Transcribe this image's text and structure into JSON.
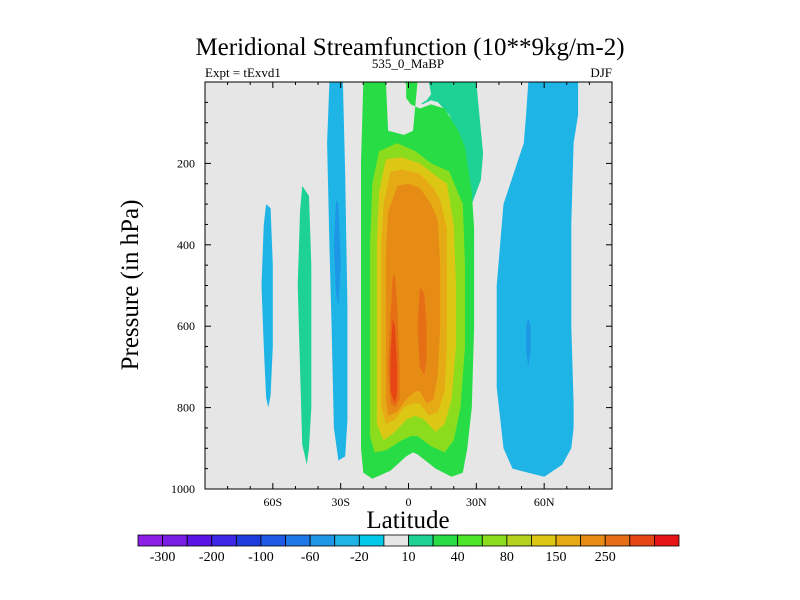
{
  "chart_data": {
    "type": "contour",
    "title": "Meridional Streamfunction (10**9kg/m-2)",
    "left_label": "Expt = tExvd1",
    "center_label": "535_0_MaBP",
    "right_label": "DJF",
    "xlabel": "Latitude",
    "ylabel": "Pressure (in hPa)",
    "xlim": [
      -90,
      90
    ],
    "ylim": [
      1000,
      0
    ],
    "x_ticks": [
      {
        "value": -60,
        "label": "60S"
      },
      {
        "value": -30,
        "label": "30S"
      },
      {
        "value": 0,
        "label": "0"
      },
      {
        "value": 30,
        "label": "30N"
      },
      {
        "value": 60,
        "label": "60N"
      }
    ],
    "y_ticks": [
      {
        "value": 200,
        "label": "200"
      },
      {
        "value": 400,
        "label": "400"
      },
      {
        "value": 600,
        "label": "600"
      },
      {
        "value": 800,
        "label": "800"
      },
      {
        "value": 1000,
        "label": "1000"
      }
    ],
    "background_color": "#e6e6e6",
    "colorbar": {
      "colors": [
        "#8c1ee6",
        "#7a1ee6",
        "#5a14e6",
        "#3c28e6",
        "#1e3cdc",
        "#1e5ae6",
        "#1e78e6",
        "#1e96e6",
        "#1eb4e6",
        "#00c8e6",
        "#e6e6e6",
        "#1ed296",
        "#28dc46",
        "#4ee628",
        "#8cdc1e",
        "#b4d21e",
        "#dcc814",
        "#e6aa14",
        "#e68c14",
        "#e66e14",
        "#e64614",
        "#e61414"
      ],
      "labels": [
        "-300",
        "-200",
        "-100",
        "-60",
        "-20",
        "10",
        "40",
        "80",
        "150",
        "250"
      ]
    },
    "regions": [
      {
        "name": "antarctic-cell",
        "color": "#1eb4e6",
        "points": [
          [
            -63,
            300
          ],
          [
            -61,
            310
          ],
          [
            -60,
            450
          ],
          [
            -60,
            650
          ],
          [
            -61,
            770
          ],
          [
            -62,
            800
          ],
          [
            -63,
            775
          ],
          [
            -64,
            650
          ],
          [
            -65,
            500
          ],
          [
            -64,
            350
          ]
        ]
      },
      {
        "name": "ferrel-cell-south",
        "color": "#1ed296",
        "points": [
          [
            -47,
            255
          ],
          [
            -44,
            280
          ],
          [
            -43,
            450
          ],
          [
            -43,
            650
          ],
          [
            -43,
            800
          ],
          [
            -44,
            900
          ],
          [
            -45,
            940
          ],
          [
            -47,
            890
          ],
          [
            -48,
            700
          ],
          [
            -49,
            500
          ],
          [
            -48,
            320
          ]
        ]
      },
      {
        "name": "south-hadley-edge",
        "color": "#1eb4e6",
        "points": [
          [
            -35,
            0
          ],
          [
            -29,
            0
          ],
          [
            -28,
            230
          ],
          [
            -27,
            550
          ],
          [
            -27,
            830
          ],
          [
            -28,
            920
          ],
          [
            -31,
            930
          ],
          [
            -33,
            850
          ],
          [
            -34,
            600
          ],
          [
            -35,
            400
          ],
          [
            -36,
            150
          ]
        ]
      },
      {
        "name": "south-hadley-core",
        "color": "#1e96e6",
        "points": [
          [
            -32,
            290
          ],
          [
            -31,
            300
          ],
          [
            -30,
            450
          ],
          [
            -31,
            550
          ],
          [
            -32,
            520
          ],
          [
            -33,
            400
          ]
        ]
      },
      {
        "name": "north-hadley-band",
        "color": "#1ed296",
        "points": [
          [
            -2,
            0
          ],
          [
            30,
            0
          ],
          [
            32,
            120
          ],
          [
            33,
            175
          ],
          [
            32,
            240
          ],
          [
            28,
            300
          ],
          [
            25,
            270
          ],
          [
            24,
            160
          ],
          [
            18,
            80
          ],
          [
            13,
            50
          ],
          [
            10,
            45
          ],
          [
            6,
            55
          ],
          [
            4,
            40
          ],
          [
            2,
            20
          ]
        ]
      },
      {
        "name": "north-hadley-inner",
        "color": "#e6e6e6",
        "points": [
          [
            3,
            0
          ],
          [
            9,
            0
          ],
          [
            10,
            30
          ],
          [
            8,
            45
          ],
          [
            5,
            55
          ],
          [
            3,
            50
          ]
        ]
      },
      {
        "name": "northern-cell",
        "color": "#1eb4e6",
        "points": [
          [
            53,
            0
          ],
          [
            75,
            0
          ],
          [
            75,
            80
          ],
          [
            73,
            150
          ],
          [
            72,
            350
          ],
          [
            72,
            600
          ],
          [
            73,
            790
          ],
          [
            73,
            850
          ],
          [
            72,
            900
          ],
          [
            68,
            940
          ],
          [
            60,
            970
          ],
          [
            53,
            960
          ],
          [
            46,
            950
          ],
          [
            42,
            900
          ],
          [
            39,
            750
          ],
          [
            39,
            500
          ],
          [
            42,
            300
          ],
          [
            45,
            250
          ],
          [
            48,
            200
          ],
          [
            51,
            150
          ],
          [
            52,
            80
          ]
        ]
      },
      {
        "name": "northern-cell-core",
        "color": "#1e96e6",
        "points": [
          [
            53,
            580
          ],
          [
            54,
            600
          ],
          [
            54,
            660
          ],
          [
            53,
            700
          ],
          [
            52,
            660
          ],
          [
            52,
            600
          ]
        ]
      },
      {
        "name": "hadley-level-10",
        "color": "#28dc46",
        "points": [
          [
            -20,
            0
          ],
          [
            -10,
            0
          ],
          [
            -9,
            120
          ],
          [
            -2,
            130
          ],
          [
            2,
            120
          ],
          [
            4,
            0
          ],
          [
            -1,
            0
          ],
          [
            -1,
            40
          ],
          [
            1,
            55
          ],
          [
            5,
            65
          ],
          [
            10,
            55
          ],
          [
            16,
            65
          ],
          [
            22,
            120
          ],
          [
            25,
            160
          ],
          [
            28,
            270
          ],
          [
            29,
            360
          ],
          [
            29,
            600
          ],
          [
            28,
            800
          ],
          [
            26,
            900
          ],
          [
            24,
            960
          ],
          [
            19,
            970
          ],
          [
            12,
            950
          ],
          [
            4,
            915
          ],
          [
            2,
            910
          ],
          [
            -1,
            920
          ],
          [
            -8,
            955
          ],
          [
            -16,
            975
          ],
          [
            -20,
            960
          ],
          [
            -21,
            900
          ],
          [
            -21,
            700
          ],
          [
            -21,
            500
          ],
          [
            -21,
            200
          ]
        ]
      },
      {
        "name": "hadley-level-40",
        "color": "#8cdc1e",
        "points": [
          [
            -16,
            250
          ],
          [
            -13,
            170
          ],
          [
            -5,
            150
          ],
          [
            3,
            170
          ],
          [
            10,
            200
          ],
          [
            18,
            220
          ],
          [
            24,
            300
          ],
          [
            25,
            450
          ],
          [
            25,
            650
          ],
          [
            23,
            800
          ],
          [
            20,
            880
          ],
          [
            16,
            910
          ],
          [
            10,
            895
          ],
          [
            4,
            870
          ],
          [
            1,
            870
          ],
          [
            -3,
            880
          ],
          [
            -10,
            905
          ],
          [
            -15,
            910
          ],
          [
            -17,
            870
          ],
          [
            -17,
            600
          ],
          [
            -17,
            400
          ]
        ]
      },
      {
        "name": "hadley-level-80",
        "color": "#dcc814",
        "points": [
          [
            -13,
            270
          ],
          [
            -10,
            190
          ],
          [
            -3,
            185
          ],
          [
            5,
            200
          ],
          [
            12,
            230
          ],
          [
            17,
            250
          ],
          [
            20,
            350
          ],
          [
            21,
            500
          ],
          [
            21,
            650
          ],
          [
            19,
            780
          ],
          [
            16,
            840
          ],
          [
            12,
            860
          ],
          [
            7,
            830
          ],
          [
            3,
            820
          ],
          [
            -1,
            830
          ],
          [
            -6,
            860
          ],
          [
            -11,
            880
          ],
          [
            -14,
            840
          ],
          [
            -14,
            600
          ],
          [
            -14,
            400
          ]
        ]
      },
      {
        "name": "hadley-level-150",
        "color": "#e6aa14",
        "points": [
          [
            -11,
            300
          ],
          [
            -8,
            220
          ],
          [
            -3,
            215
          ],
          [
            5,
            225
          ],
          [
            11,
            260
          ],
          [
            14,
            290
          ],
          [
            17,
            360
          ],
          [
            17,
            500
          ],
          [
            17,
            650
          ],
          [
            16,
            760
          ],
          [
            13,
            810
          ],
          [
            9,
            820
          ],
          [
            5,
            790
          ],
          [
            2,
            790
          ],
          [
            -2,
            800
          ],
          [
            -6,
            830
          ],
          [
            -10,
            840
          ],
          [
            -12,
            800
          ],
          [
            -12,
            600
          ],
          [
            -12,
            400
          ]
        ]
      },
      {
        "name": "hadley-level-250",
        "color": "#e68c14",
        "points": [
          [
            -9,
            320
          ],
          [
            -5,
            255
          ],
          [
            0,
            250
          ],
          [
            5,
            260
          ],
          [
            10,
            300
          ],
          [
            13,
            340
          ],
          [
            14,
            450
          ],
          [
            14,
            600
          ],
          [
            13,
            720
          ],
          [
            11,
            780
          ],
          [
            8,
            790
          ],
          [
            5,
            760
          ],
          [
            3,
            760
          ],
          [
            -1,
            780
          ],
          [
            -5,
            810
          ],
          [
            -9,
            820
          ],
          [
            -10,
            780
          ],
          [
            -10,
            600
          ],
          [
            -10,
            420
          ]
        ]
      },
      {
        "name": "core-left",
        "color": "#e66e14",
        "points": [
          [
            -7,
            480
          ],
          [
            -6,
            470
          ],
          [
            -5,
            550
          ],
          [
            -4,
            700
          ],
          [
            -4,
            780
          ],
          [
            -6,
            800
          ],
          [
            -8,
            790
          ],
          [
            -9,
            700
          ],
          [
            -8,
            580
          ]
        ]
      },
      {
        "name": "core-left-max",
        "color": "#e64614",
        "points": [
          [
            -7,
            580
          ],
          [
            -6,
            600
          ],
          [
            -5,
            700
          ],
          [
            -5,
            760
          ],
          [
            -6,
            790
          ],
          [
            -8,
            760
          ],
          [
            -8,
            680
          ]
        ]
      },
      {
        "name": "core-right",
        "color": "#e66e14",
        "points": [
          [
            5,
            505
          ],
          [
            7,
            520
          ],
          [
            8,
            600
          ],
          [
            8,
            680
          ],
          [
            7,
            720
          ],
          [
            5,
            700
          ],
          [
            4,
            600
          ]
        ]
      }
    ]
  }
}
